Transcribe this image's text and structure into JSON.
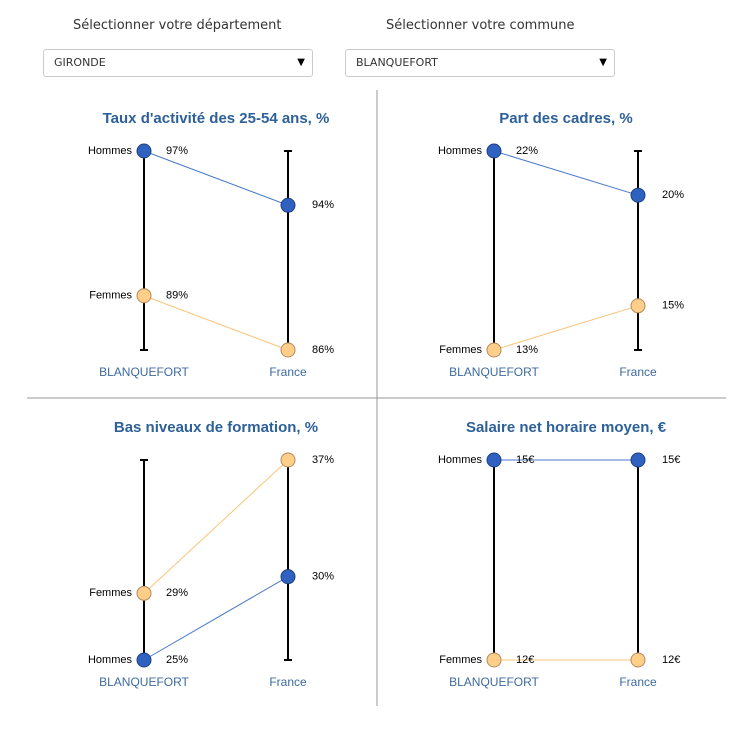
{
  "filters": [
    {
      "label": "Sélectionner votre département",
      "value": "GIRONDE"
    },
    {
      "label": "Sélectionner votre commune",
      "value": "BLANQUEFORT"
    }
  ],
  "chart_data": [
    {
      "type": "slope",
      "title": "Taux d'activité des 25-54 ans, %",
      "categories": [
        "BLANQUEFORT",
        "France"
      ],
      "ylim": [
        86,
        97
      ],
      "series": [
        {
          "name": "Hommes",
          "color": "#2f62c0",
          "values": [
            97,
            94
          ],
          "value_labels": [
            "97%",
            "94%"
          ]
        },
        {
          "name": "Femmes",
          "color": "#ffcf8a",
          "values": [
            89,
            86
          ],
          "value_labels": [
            "89%",
            "86%"
          ]
        }
      ]
    },
    {
      "type": "slope",
      "title": "Part des cadres, %",
      "categories": [
        "BLANQUEFORT",
        "France"
      ],
      "ylim": [
        13,
        22
      ],
      "series": [
        {
          "name": "Hommes",
          "color": "#2f62c0",
          "values": [
            22,
            20
          ],
          "value_labels": [
            "22%",
            "20%"
          ]
        },
        {
          "name": "Femmes",
          "color": "#ffcf8a",
          "values": [
            13,
            15
          ],
          "value_labels": [
            "13%",
            "15%"
          ]
        }
      ]
    },
    {
      "type": "slope",
      "title": "Bas niveaux de formation, %",
      "categories": [
        "BLANQUEFORT",
        "France"
      ],
      "ylim": [
        25,
        37
      ],
      "series": [
        {
          "name": "Hommes",
          "color": "#2f62c0",
          "values": [
            25,
            30
          ],
          "value_labels": [
            "25%",
            "30%"
          ]
        },
        {
          "name": "Femmes",
          "color": "#ffcf8a",
          "values": [
            29,
            37
          ],
          "value_labels": [
            "29%",
            "37%"
          ]
        }
      ]
    },
    {
      "type": "slope",
      "title": "Salaire net horaire moyen, €",
      "categories": [
        "BLANQUEFORT",
        "France"
      ],
      "ylim": [
        12,
        15
      ],
      "series": [
        {
          "name": "Hommes",
          "color": "#2f62c0",
          "values": [
            15,
            15
          ],
          "value_labels": [
            "15€",
            "15€"
          ]
        },
        {
          "name": "Femmes",
          "color": "#ffcf8a",
          "values": [
            12,
            12
          ],
          "value_labels": [
            "12€",
            "12€"
          ]
        }
      ]
    }
  ]
}
